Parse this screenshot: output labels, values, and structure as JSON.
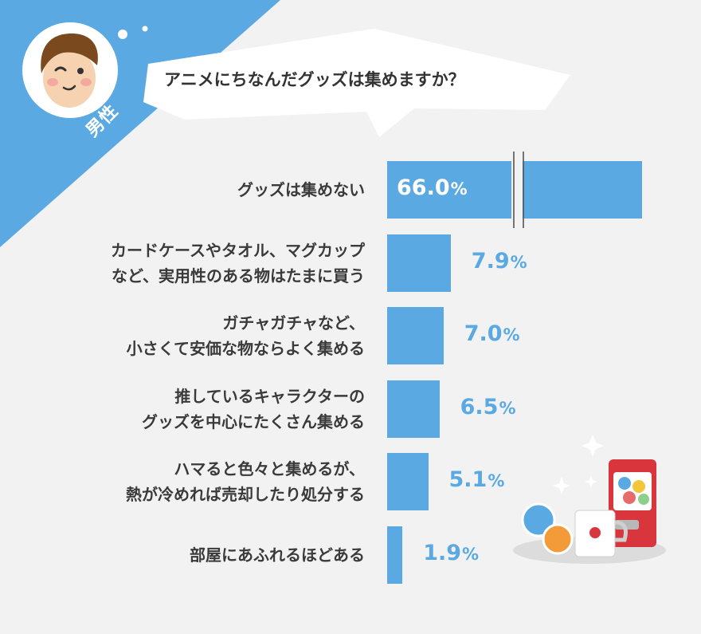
{
  "header": {
    "gender_label": "男性",
    "question": "アニメにちなんだグッズは集めますか？"
  },
  "colors": {
    "accent": "#5aa9e2",
    "background": "#f2f2f2",
    "text": "#3a3a3a"
  },
  "chart_data": {
    "type": "bar",
    "orientation": "horizontal",
    "axis_break": true,
    "categories": [
      "グッズは集めない",
      "カードケースやタオル、マグカップ\nなど、実用性のある物はたまに買う",
      "ガチャガチャなど、\n小さくて安価な物ならよく集める",
      "推しているキャラクターの\nグッズを中心にたくさん集める",
      "ハマると色々と集めるが、\n熱が冷めれば売却したり処分する",
      "部屋にあふれるほどある"
    ],
    "values": [
      66.0,
      7.9,
      7.0,
      6.5,
      5.1,
      1.9
    ],
    "value_labels": [
      "66.0",
      "7.9",
      "7.0",
      "6.5",
      "5.1",
      "1.9"
    ],
    "unit": "%"
  }
}
